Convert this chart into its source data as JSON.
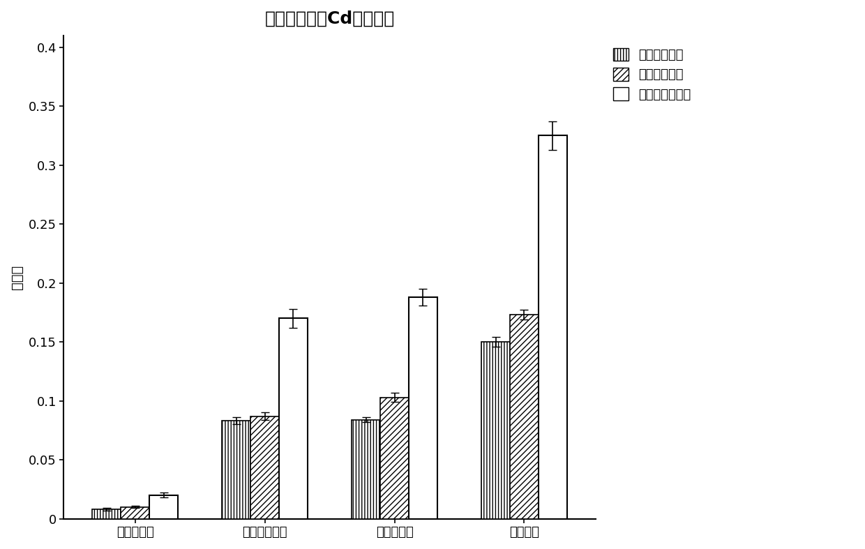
{
  "title": "两年间土壤中Cd的去除率",
  "ylabel": "去除率",
  "categories": [
    "单种黑麦草",
    "单种伴矿景天",
    "单种巨菌草",
    "间作种植"
  ],
  "year1_values": [
    0.008,
    0.083,
    0.084,
    0.15
  ],
  "year2_values": [
    0.01,
    0.087,
    0.103,
    0.173
  ],
  "total_values": [
    0.02,
    0.17,
    0.188,
    0.325
  ],
  "year1_errors": [
    0.001,
    0.003,
    0.002,
    0.004
  ],
  "year2_errors": [
    0.001,
    0.003,
    0.004,
    0.004
  ],
  "total_errors": [
    0.002,
    0.008,
    0.007,
    0.012
  ],
  "ylim": [
    0,
    0.41
  ],
  "yticks": [
    0,
    0.05,
    0.1,
    0.15,
    0.2,
    0.25,
    0.3,
    0.35,
    0.4
  ],
  "legend_labels": [
    "第一年去除率",
    "第二年去除率",
    "两年后总去除率"
  ],
  "bar_width": 0.22,
  "background_color": "#ffffff",
  "title_fontsize": 18,
  "label_fontsize": 14,
  "tick_fontsize": 13,
  "legend_fontsize": 13
}
